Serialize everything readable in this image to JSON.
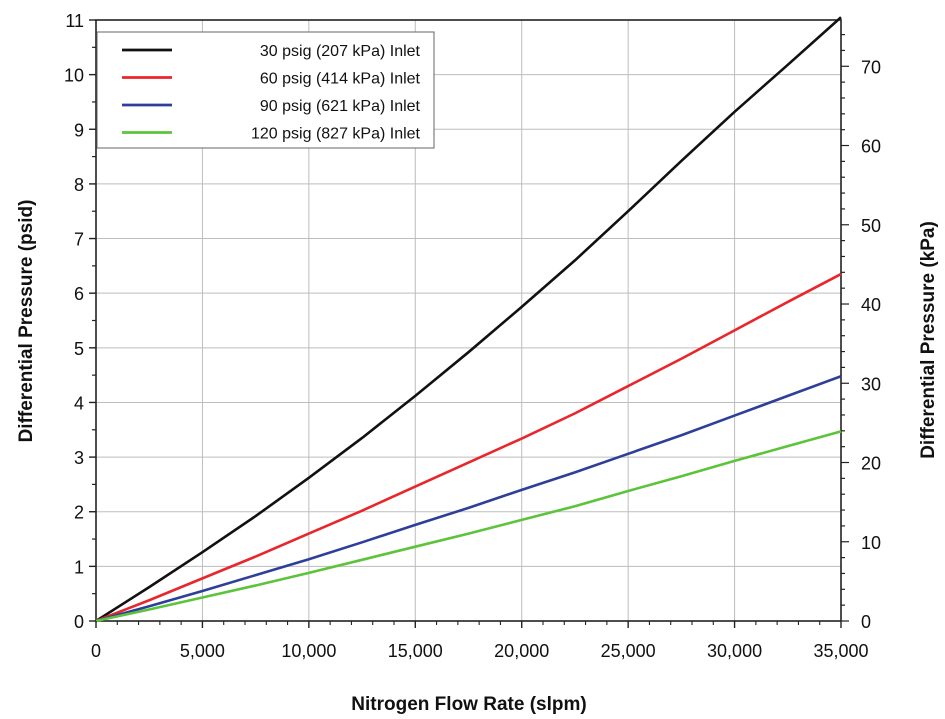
{
  "chart_data": {
    "type": "line",
    "title": "",
    "xlabel": "Nitrogen Flow Rate (slpm)",
    "ylabel": "Differential Pressure (psid)",
    "ylabel_right": "Differential Pressure (kPa)",
    "xlim": [
      0,
      35000
    ],
    "ylim": [
      0,
      11
    ],
    "ylim_right": [
      0,
      75.84
    ],
    "x_ticks": [
      0,
      5000,
      10000,
      15000,
      20000,
      25000,
      30000,
      35000
    ],
    "x_tick_labels": [
      "0",
      "5,000",
      "10,000",
      "15,000",
      "20,000",
      "25,000",
      "30,000",
      "35,000"
    ],
    "y_ticks": [
      0,
      1,
      2,
      3,
      4,
      5,
      6,
      7,
      8,
      9,
      10,
      11
    ],
    "y_tick_labels": [
      "0",
      "1",
      "2",
      "3",
      "4",
      "5",
      "6",
      "7",
      "8",
      "9",
      "10",
      "11"
    ],
    "y_right_ticks": [
      0,
      10,
      20,
      30,
      40,
      50,
      60,
      70
    ],
    "y_right_tick_labels": [
      "0",
      "10",
      "20",
      "30",
      "40",
      "50",
      "60",
      "70"
    ],
    "grid": true,
    "legend_position": "top-left",
    "x": [
      0,
      2500,
      5000,
      7500,
      10000,
      12500,
      15000,
      17500,
      20000,
      22500,
      25000,
      27500,
      30000,
      32500,
      35000
    ],
    "series": [
      {
        "name": "30 psig (207 kPa) Inlet",
        "color": "#111111",
        "values": [
          0,
          0.62,
          1.26,
          1.92,
          2.62,
          3.35,
          4.12,
          4.92,
          5.75,
          6.6,
          7.5,
          8.42,
          9.32,
          10.18,
          11.05
        ]
      },
      {
        "name": "60 psig (414 kPa) Inlet",
        "color": "#e8262b",
        "values": [
          0,
          0.38,
          0.78,
          1.18,
          1.6,
          2.02,
          2.46,
          2.9,
          3.34,
          3.8,
          4.3,
          4.8,
          5.32,
          5.84,
          6.35
        ]
      },
      {
        "name": "90 psig (621 kPa) Inlet",
        "color": "#2e3f9a",
        "values": [
          0,
          0.27,
          0.55,
          0.84,
          1.13,
          1.44,
          1.76,
          2.07,
          2.4,
          2.72,
          3.06,
          3.4,
          3.76,
          4.12,
          4.48
        ]
      },
      {
        "name": "120 psig (827 kPa) Inlet",
        "color": "#5cc43a",
        "values": [
          0,
          0.21,
          0.43,
          0.65,
          0.88,
          1.12,
          1.36,
          1.6,
          1.85,
          2.1,
          2.38,
          2.65,
          2.93,
          3.2,
          3.47
        ]
      }
    ]
  }
}
